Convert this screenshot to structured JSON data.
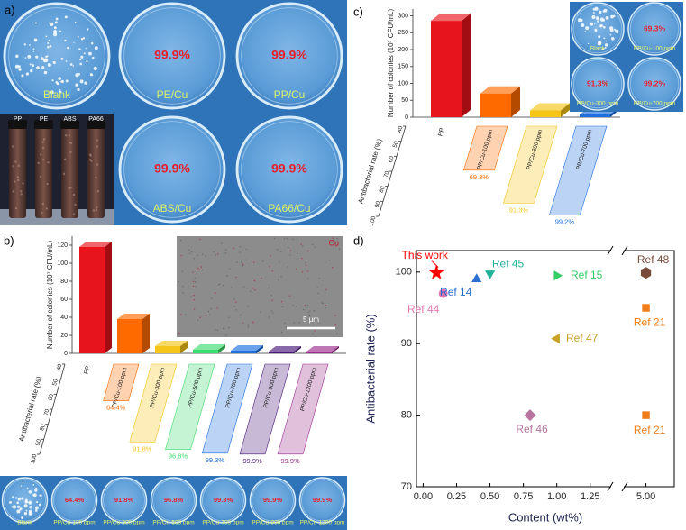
{
  "panel_a": {
    "label": "a)",
    "dishes": [
      {
        "label": "Blank"
      },
      {
        "label": "PE/Cu",
        "rate": "99.9%"
      },
      {
        "label": "PP/Cu",
        "rate": "99.9%"
      },
      {
        "label": "ABS/Cu",
        "rate": "99.9%"
      },
      {
        "label": "PA66/Cu",
        "rate": "99.9%"
      }
    ],
    "tubes": [
      "PP",
      "PE",
      "ABS",
      "PA66"
    ]
  },
  "chart_data": [
    {
      "type": "bar3d",
      "label": "b)",
      "ylabel": "Number of colonies (10⁷ CFU/mL)",
      "y2label": "Antibacterial rate (%)",
      "categories": [
        "PP",
        "PP/Cu-100 ppm",
        "PP/Cu-300 ppm",
        "PP/Cu-500 ppm",
        "PP/Cu-700 ppm",
        "PP/Cu-900 ppm",
        "PP/Cu-1200 ppm"
      ],
      "colors": [
        "#e8141b",
        "#ff6a00",
        "#f5c518",
        "#3ddc6e",
        "#1e6fe0",
        "#4a1a7a",
        "#9b2e8c"
      ],
      "ylim": [
        0,
        130
      ],
      "yticks": [
        0,
        20,
        40,
        60,
        80,
        100,
        120
      ],
      "y2lim": [
        40,
        100
      ],
      "y2ticks": [
        40,
        50,
        60,
        70,
        80,
        90,
        100
      ],
      "series": [
        {
          "values": [
            118,
            38,
            8,
            4,
            3,
            2,
            2
          ]
        },
        {
          "axis": "y2",
          "values": [
            null,
            64.4,
            91.8,
            96.8,
            99.3,
            99.9,
            99.9
          ],
          "value_labels": [
            null,
            "64.4%",
            "91.8%",
            "96.8%",
            "99.3%",
            "99.9%",
            "99.9%"
          ]
        }
      ],
      "inset": {
        "label": "Cu",
        "scale_bar": "5 μm"
      },
      "dishes": [
        {
          "label": "Blank"
        },
        {
          "label": "PP/Cu-100 ppm",
          "rate": "64.4%"
        },
        {
          "label": "PP/Cu-300 ppm",
          "rate": "91.8%"
        },
        {
          "label": "PP/Cu-500 ppm",
          "rate": "96.8%"
        },
        {
          "label": "PP/Cu-700 ppm",
          "rate": "99.3%"
        },
        {
          "label": "PP/Cu-900 ppm",
          "rate": "99.9%"
        },
        {
          "label": "PP/Cu-1200 ppm",
          "rate": "99.9%"
        }
      ]
    },
    {
      "type": "bar3d",
      "label": "c)",
      "ylabel": "Number of colonies (10⁷ CFU/mL)",
      "y2label": "Antibacterial rate (%)",
      "categories": [
        "PP",
        "PP/Cu-100 ppm",
        "PP/Cu-300 ppm",
        "PP/Cu-700 ppm"
      ],
      "colors": [
        "#e8141b",
        "#ff6a00",
        "#f5c518",
        "#1e6fe0"
      ],
      "ylim": [
        0,
        320
      ],
      "yticks": [
        0,
        50,
        100,
        150,
        200,
        250,
        300
      ],
      "y2lim": [
        40,
        100
      ],
      "y2ticks": [
        40,
        50,
        60,
        70,
        80,
        90,
        100
      ],
      "series": [
        {
          "values": [
            285,
            70,
            20,
            8
          ]
        },
        {
          "axis": "y2",
          "values": [
            null,
            69.3,
            91.3,
            99.2
          ],
          "value_labels": [
            null,
            "69.3%",
            "91.3%",
            "99.2%"
          ]
        }
      ],
      "dishes": [
        {
          "label": "Blank"
        },
        {
          "label": "PP/Cu-100 ppm",
          "rate": "69.3%"
        },
        {
          "label": "PP/Cu-300 ppm",
          "rate": "91.3%"
        },
        {
          "label": "PP/Cu-700 ppm",
          "rate": "99.2%"
        }
      ]
    },
    {
      "type": "scatter",
      "label": "d)",
      "xlabel": "Content (wt%)",
      "ylabel": "Antibacterial rate (%)",
      "xlim": [
        -0.05,
        5.2
      ],
      "x_break": [
        1.4,
        4.85
      ],
      "xticks": [
        {
          "value": 0,
          "label": "0.00"
        },
        {
          "value": 0.25,
          "label": "0.25"
        },
        {
          "value": 0.5,
          "label": "0.50"
        },
        {
          "value": 0.75,
          "label": "0.75"
        },
        {
          "value": 1,
          "label": "1.00"
        },
        {
          "value": 1.25,
          "label": "1.25"
        },
        {
          "value": 5,
          "label": "5.00"
        }
      ],
      "ylim": [
        70,
        103
      ],
      "yticks": [
        70,
        80,
        90,
        100
      ],
      "series": [
        {
          "name": "This work",
          "color": "#ff0000",
          "marker": "star",
          "x": [
            0.1
          ],
          "values": [
            99.9
          ]
        },
        {
          "name": "Ref 44",
          "color": "#e07bb0",
          "marker": "circle",
          "x": [
            0.15
          ],
          "values": [
            97
          ]
        },
        {
          "name": "Ref 14",
          "color": "#2a6fd0",
          "marker": "triangle-up",
          "x": [
            0.4
          ],
          "values": [
            99
          ]
        },
        {
          "name": "Ref 45",
          "color": "#21b39a",
          "marker": "triangle-down",
          "x": [
            0.5
          ],
          "values": [
            99.8
          ]
        },
        {
          "name": "Ref 15",
          "color": "#33cc66",
          "marker": "triangle-right",
          "x": [
            1.0
          ],
          "values": [
            99.5
          ]
        },
        {
          "name": "Ref 47",
          "color": "#c9a227",
          "marker": "triangle-left",
          "x": [
            1.0
          ],
          "values": [
            90.7
          ]
        },
        {
          "name": "Ref 46",
          "color": "#b5739d",
          "marker": "diamond",
          "x": [
            0.8
          ],
          "values": [
            80
          ]
        },
        {
          "name": "Ref 48",
          "color": "#7b4b3a",
          "marker": "hexagon",
          "x": [
            5.0
          ],
          "values": [
            99.9
          ]
        },
        {
          "name": "Ref 21",
          "color": "#f07f1b",
          "marker": "square",
          "x": [
            5.0,
            5.0
          ],
          "values": [
            95,
            80
          ]
        }
      ]
    }
  ]
}
